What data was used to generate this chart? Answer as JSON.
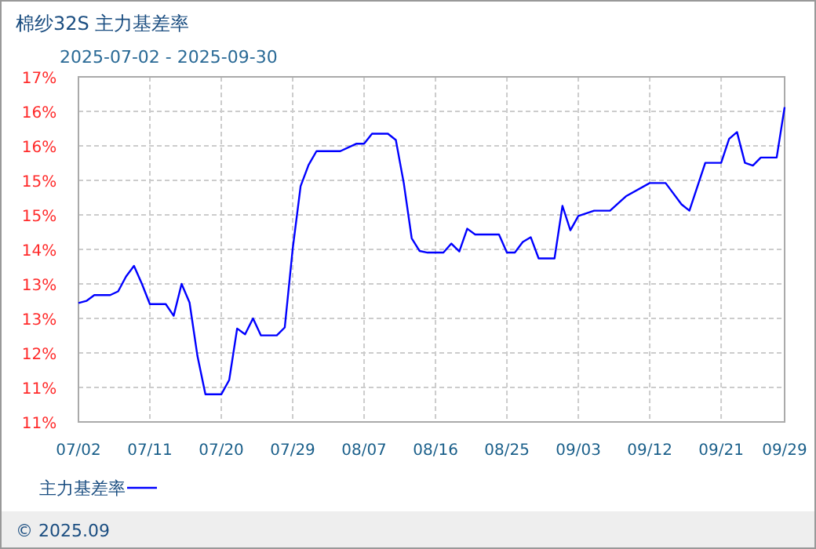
{
  "chart_data": {
    "type": "line",
    "title": "棉纱32S 主力基差率",
    "subtitle": "2025-07-02 - 2025-09-30",
    "x": [
      "2025-07-02",
      "2025-07-03",
      "2025-07-04",
      "2025-07-06",
      "2025-07-07",
      "2025-07-08",
      "2025-07-09",
      "2025-07-10",
      "2025-07-11",
      "2025-07-13",
      "2025-07-14",
      "2025-07-15",
      "2025-07-16",
      "2025-07-17",
      "2025-07-18",
      "2025-07-20",
      "2025-07-21",
      "2025-07-22",
      "2025-07-23",
      "2025-07-24",
      "2025-07-25",
      "2025-07-27",
      "2025-07-28",
      "2025-07-29",
      "2025-07-30",
      "2025-07-31",
      "2025-08-01",
      "2025-08-04",
      "2025-08-06",
      "2025-08-07",
      "2025-08-08",
      "2025-08-10",
      "2025-08-11",
      "2025-08-12",
      "2025-08-13",
      "2025-08-14",
      "2025-08-15",
      "2025-08-17",
      "2025-08-18",
      "2025-08-19",
      "2025-08-20",
      "2025-08-21",
      "2025-08-24",
      "2025-08-25",
      "2025-08-26",
      "2025-08-27",
      "2025-08-28",
      "2025-08-29",
      "2025-08-31",
      "2025-09-01",
      "2025-09-02",
      "2025-09-03",
      "2025-09-05",
      "2025-09-07",
      "2025-09-09",
      "2025-09-12",
      "2025-09-14",
      "2025-09-16",
      "2025-09-17",
      "2025-09-19",
      "2025-09-21",
      "2025-09-22",
      "2025-09-23",
      "2025-09-24",
      "2025-09-25",
      "2025-09-26",
      "2025-09-28",
      "2025-09-29"
    ],
    "series": [
      {
        "name": "主力基差率",
        "color": "#0000ff",
        "values": [
          12.86,
          12.9,
          13.01,
          13.01,
          13.08,
          13.36,
          13.56,
          13.22,
          12.84,
          12.84,
          12.62,
          13.22,
          12.87,
          11.86,
          11.14,
          11.14,
          11.41,
          12.38,
          12.27,
          12.57,
          12.25,
          12.25,
          12.4,
          13.88,
          15.06,
          15.46,
          15.72,
          15.72,
          15.86,
          15.86,
          16.05,
          16.05,
          15.93,
          15.12,
          14.08,
          13.84,
          13.81,
          13.81,
          13.98,
          13.83,
          14.26,
          14.15,
          14.15,
          13.81,
          13.81,
          14.01,
          14.1,
          13.7,
          13.7,
          14.69,
          14.23,
          14.5,
          14.6,
          14.6,
          14.87,
          15.12,
          15.12,
          14.72,
          14.6,
          15.5,
          15.5,
          15.95,
          16.08,
          15.5,
          15.45,
          15.6,
          15.6,
          16.55
        ]
      }
    ],
    "xlim": [
      "2025-07-02",
      "2025-09-29"
    ],
    "xticks": [
      {
        "value": "2025-07-02",
        "label": "07/02"
      },
      {
        "value": "2025-07-11",
        "label": "07/11"
      },
      {
        "value": "2025-07-20",
        "label": "07/20"
      },
      {
        "value": "2025-07-29",
        "label": "07/29"
      },
      {
        "value": "2025-08-07",
        "label": "08/07"
      },
      {
        "value": "2025-08-16",
        "label": "08/16"
      },
      {
        "value": "2025-08-25",
        "label": "08/25"
      },
      {
        "value": "2025-09-03",
        "label": "09/03"
      },
      {
        "value": "2025-09-12",
        "label": "09/12"
      },
      {
        "value": "2025-09-21",
        "label": "09/21"
      },
      {
        "value": "2025-09-29",
        "label": "09/29"
      }
    ],
    "ylim": [
      10.62,
      17.12
    ],
    "yticks": [
      {
        "value": 10.62,
        "label": "11%"
      },
      {
        "value": 11.27,
        "label": "11%"
      },
      {
        "value": 11.92,
        "label": "12%"
      },
      {
        "value": 12.57,
        "label": "13%"
      },
      {
        "value": 13.22,
        "label": "13%"
      },
      {
        "value": 13.87,
        "label": "14%"
      },
      {
        "value": 14.52,
        "label": "15%"
      },
      {
        "value": 15.17,
        "label": "15%"
      },
      {
        "value": 15.82,
        "label": "16%"
      },
      {
        "value": 16.47,
        "label": "16%"
      },
      {
        "value": 17.12,
        "label": "17%"
      }
    ],
    "grid": true,
    "legend": "bottom",
    "annotations": [
      "© 2025.09"
    ]
  }
}
